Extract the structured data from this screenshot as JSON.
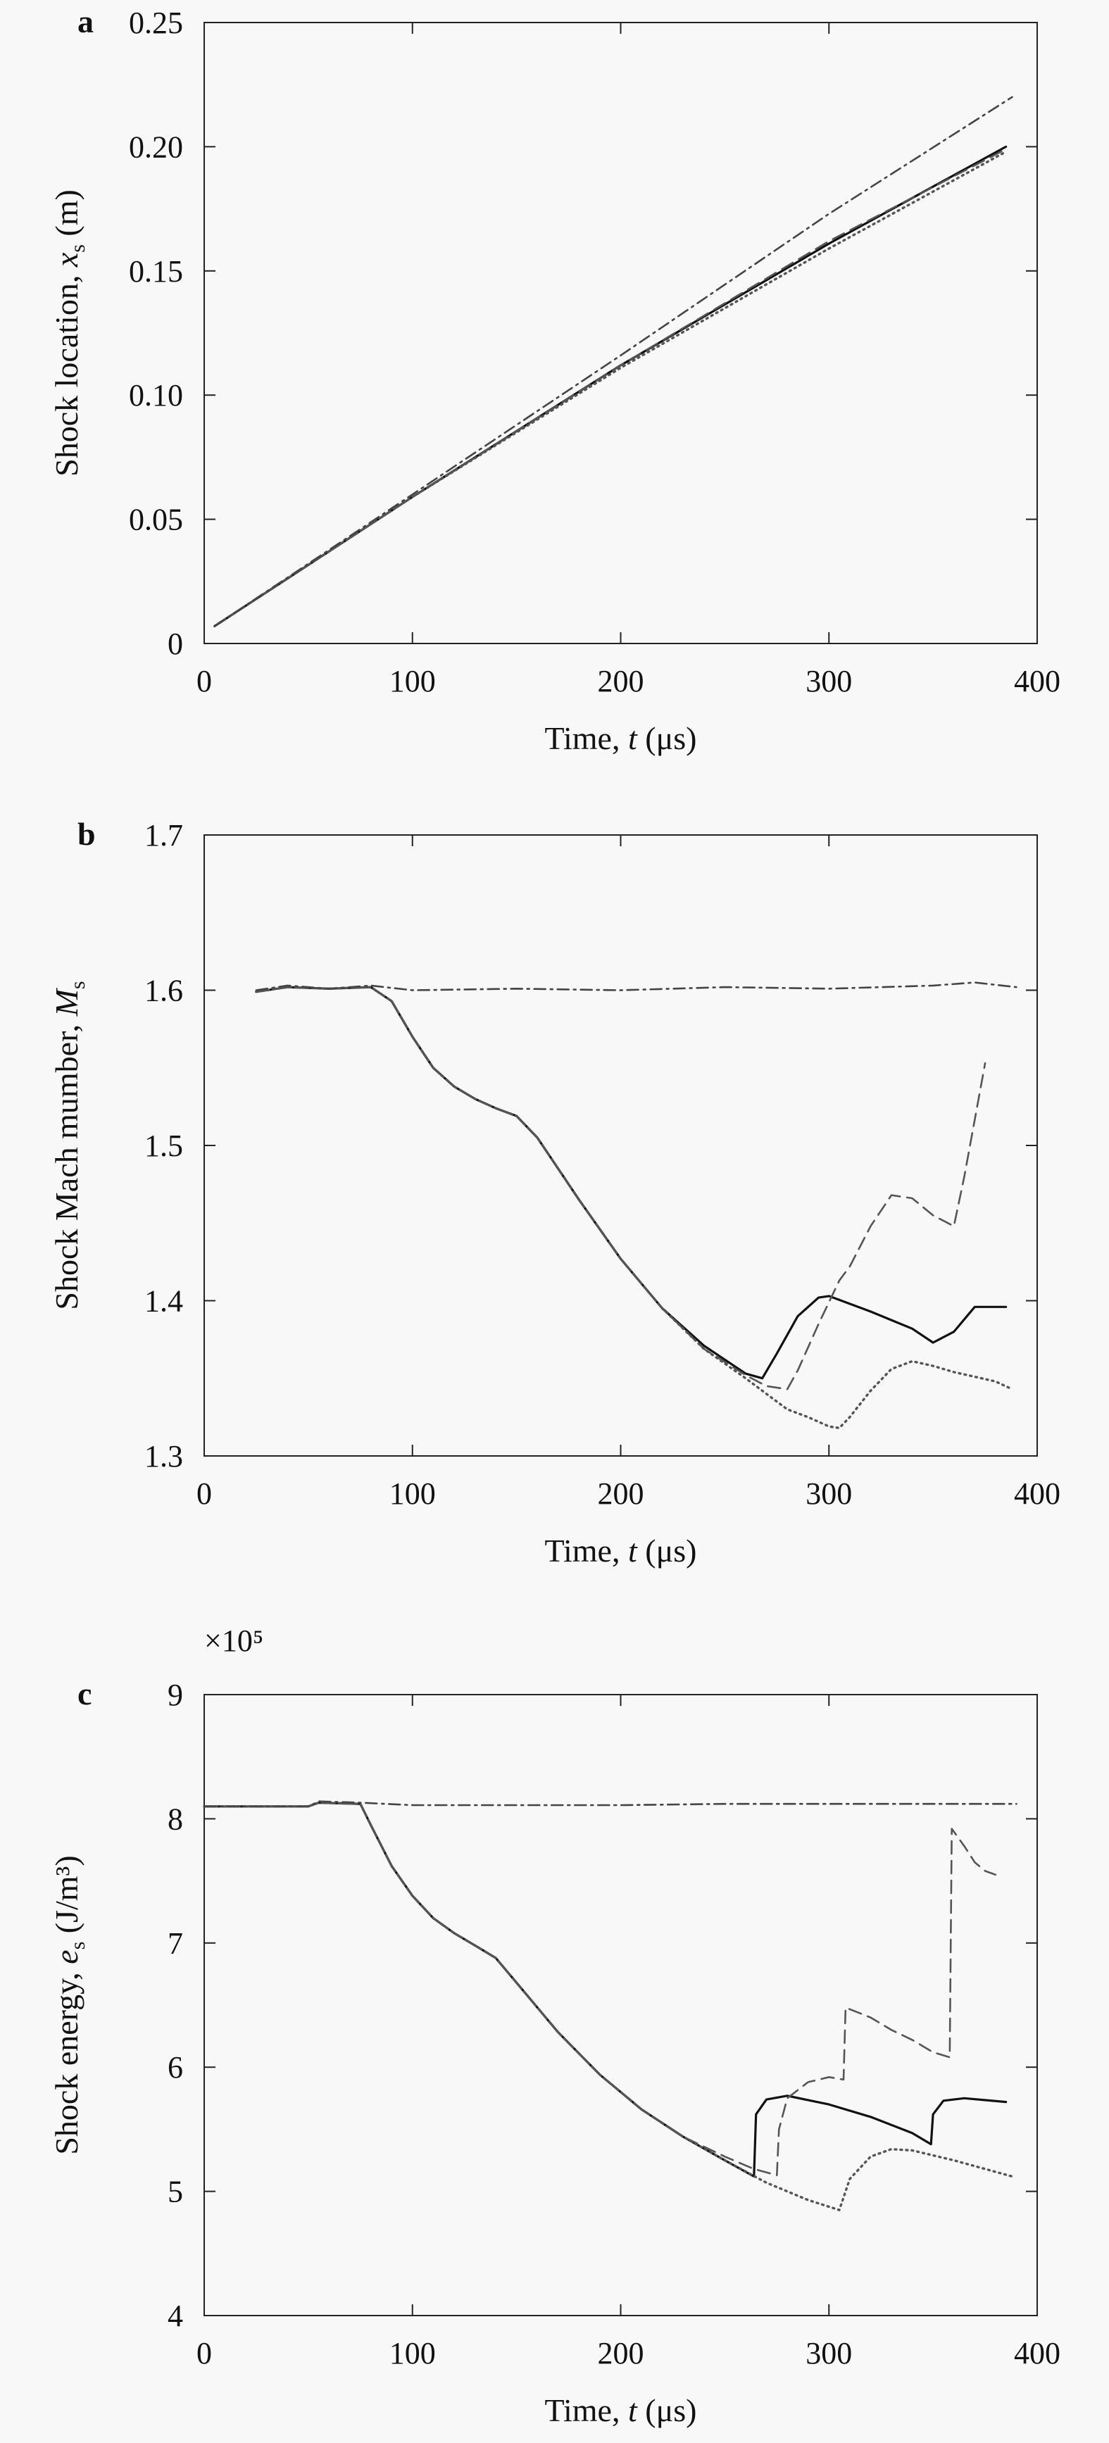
{
  "chart_data": [
    {
      "panel": "a",
      "type": "line",
      "xlabel": "Time, t (μs)",
      "ylabel": "Shock location, x_s (m)",
      "xlim": [
        0,
        400
      ],
      "ylim": [
        0,
        0.25
      ],
      "xticks": [
        "0",
        "100",
        "200",
        "300",
        "400"
      ],
      "yticks": [
        "0",
        "0.05",
        "0.10",
        "0.15",
        "0.20",
        "0.25"
      ],
      "series": [
        {
          "style": "solid",
          "x": [
            5,
            100,
            200,
            300,
            385
          ],
          "y": [
            0.007,
            0.059,
            0.112,
            0.161,
            0.2
          ]
        },
        {
          "style": "dashed",
          "x": [
            5,
            100,
            200,
            300,
            385
          ],
          "y": [
            0.007,
            0.059,
            0.112,
            0.162,
            0.199
          ]
        },
        {
          "style": "dotted",
          "x": [
            5,
            100,
            200,
            300,
            385
          ],
          "y": [
            0.007,
            0.059,
            0.111,
            0.159,
            0.198
          ]
        },
        {
          "style": "dashdot",
          "x": [
            5,
            100,
            200,
            300,
            388
          ],
          "y": [
            0.007,
            0.06,
            0.116,
            0.173,
            0.22
          ]
        }
      ]
    },
    {
      "panel": "b",
      "type": "line",
      "xlabel": "Time, t (μs)",
      "ylabel": "Shock Mach mumber, M_s",
      "xlim": [
        0,
        400
      ],
      "ylim": [
        1.3,
        1.7
      ],
      "xticks": [
        "0",
        "100",
        "200",
        "300",
        "400"
      ],
      "yticks": [
        "1.3",
        "1.4",
        "1.5",
        "1.6",
        "1.7"
      ],
      "series": [
        {
          "style": "solid",
          "x": [
            25,
            40,
            60,
            80,
            90,
            100,
            110,
            120,
            130,
            140,
            150,
            160,
            180,
            200,
            220,
            240,
            260,
            268,
            275,
            285,
            295,
            300,
            320,
            340,
            350,
            360,
            370,
            385
          ],
          "y": [
            1.599,
            1.602,
            1.601,
            1.602,
            1.593,
            1.57,
            1.55,
            1.538,
            1.53,
            1.524,
            1.519,
            1.505,
            1.465,
            1.427,
            1.395,
            1.371,
            1.353,
            1.35,
            1.366,
            1.39,
            1.402,
            1.403,
            1.393,
            1.382,
            1.373,
            1.38,
            1.396,
            1.396
          ]
        },
        {
          "style": "dashed",
          "x": [
            25,
            40,
            60,
            80,
            90,
            100,
            110,
            120,
            130,
            140,
            150,
            160,
            180,
            200,
            220,
            240,
            260,
            270,
            280,
            285,
            295,
            305,
            310,
            320,
            330,
            340,
            350,
            360,
            365,
            375
          ],
          "y": [
            1.599,
            1.602,
            1.601,
            1.602,
            1.593,
            1.57,
            1.55,
            1.538,
            1.53,
            1.524,
            1.519,
            1.505,
            1.465,
            1.427,
            1.395,
            1.369,
            1.352,
            1.345,
            1.343,
            1.355,
            1.385,
            1.413,
            1.422,
            1.448,
            1.468,
            1.466,
            1.455,
            1.448,
            1.48,
            1.553
          ]
        },
        {
          "style": "dotted",
          "x": [
            25,
            40,
            60,
            80,
            90,
            100,
            110,
            120,
            130,
            140,
            150,
            160,
            180,
            200,
            220,
            240,
            260,
            270,
            280,
            290,
            300,
            305,
            310,
            320,
            330,
            340,
            350,
            360,
            370,
            380,
            388
          ],
          "y": [
            1.599,
            1.602,
            1.601,
            1.602,
            1.593,
            1.57,
            1.55,
            1.538,
            1.53,
            1.524,
            1.519,
            1.505,
            1.465,
            1.427,
            1.395,
            1.369,
            1.35,
            1.34,
            1.33,
            1.325,
            1.319,
            1.318,
            1.325,
            1.342,
            1.356,
            1.361,
            1.358,
            1.354,
            1.351,
            1.348,
            1.343
          ]
        },
        {
          "style": "dashdot",
          "x": [
            25,
            40,
            60,
            80,
            100,
            150,
            200,
            250,
            300,
            350,
            370,
            390
          ],
          "y": [
            1.6,
            1.603,
            1.601,
            1.603,
            1.6,
            1.601,
            1.6,
            1.602,
            1.601,
            1.603,
            1.605,
            1.602
          ]
        }
      ]
    },
    {
      "panel": "c",
      "type": "line",
      "xlabel": "Time, t (μs)",
      "ylabel": "Shock energy, e_s (J/m³)",
      "multiplier": "×10⁵",
      "xlim": [
        0,
        400
      ],
      "ylim": [
        4,
        9
      ],
      "xticks": [
        "0",
        "100",
        "200",
        "300",
        "400"
      ],
      "yticks": [
        "4",
        "5",
        "6",
        "7",
        "8",
        "9"
      ],
      "series": [
        {
          "style": "solid",
          "x": [
            0,
            50,
            55,
            75,
            80,
            90,
            100,
            110,
            120,
            130,
            140,
            150,
            170,
            190,
            210,
            230,
            250,
            264,
            265,
            270,
            280,
            300,
            320,
            340,
            349,
            350,
            355,
            365,
            385
          ],
          "y": [
            8.1,
            8.1,
            8.13,
            8.12,
            7.95,
            7.62,
            7.38,
            7.2,
            7.08,
            6.98,
            6.88,
            6.68,
            6.28,
            5.94,
            5.66,
            5.44,
            5.25,
            5.12,
            5.62,
            5.74,
            5.77,
            5.7,
            5.6,
            5.47,
            5.38,
            5.62,
            5.73,
            5.75,
            5.72
          ]
        },
        {
          "style": "dashed",
          "x": [
            0,
            50,
            55,
            75,
            80,
            90,
            100,
            110,
            120,
            130,
            140,
            150,
            170,
            190,
            210,
            230,
            250,
            264,
            275,
            276,
            280,
            290,
            300,
            307,
            308,
            320,
            330,
            340,
            350,
            358,
            359,
            365,
            370,
            375,
            380
          ],
          "y": [
            8.1,
            8.1,
            8.13,
            8.12,
            7.95,
            7.62,
            7.38,
            7.2,
            7.08,
            6.98,
            6.88,
            6.68,
            6.28,
            5.94,
            5.66,
            5.44,
            5.28,
            5.18,
            5.13,
            5.5,
            5.75,
            5.88,
            5.92,
            5.9,
            6.48,
            6.4,
            6.3,
            6.22,
            6.12,
            6.08,
            7.92,
            7.78,
            7.65,
            7.58,
            7.55
          ]
        },
        {
          "style": "dotted",
          "x": [
            0,
            50,
            55,
            75,
            80,
            90,
            100,
            110,
            120,
            130,
            140,
            150,
            170,
            190,
            210,
            230,
            250,
            270,
            290,
            305,
            310,
            320,
            330,
            340,
            360,
            388
          ],
          "y": [
            8.1,
            8.1,
            8.13,
            8.12,
            7.95,
            7.62,
            7.38,
            7.2,
            7.08,
            6.98,
            6.88,
            6.68,
            6.28,
            5.94,
            5.66,
            5.44,
            5.25,
            5.07,
            4.93,
            4.85,
            5.1,
            5.28,
            5.34,
            5.33,
            5.25,
            5.12
          ]
        },
        {
          "style": "dashdot",
          "x": [
            0,
            50,
            55,
            75,
            100,
            150,
            200,
            250,
            300,
            350,
            390
          ],
          "y": [
            8.1,
            8.1,
            8.14,
            8.13,
            8.11,
            8.11,
            8.11,
            8.12,
            8.12,
            8.12,
            8.12
          ]
        }
      ]
    }
  ]
}
